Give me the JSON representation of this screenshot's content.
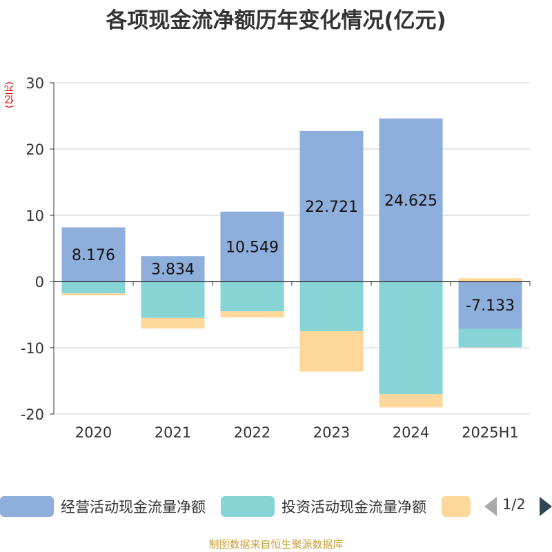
{
  "title": "各项现金流净额历年变化情况(亿元)",
  "unit_label": "(亿元)",
  "source": "制图数据来自恒生聚源数据库",
  "pager": "1/2",
  "chart_data": {
    "type": "bar",
    "stacked": true,
    "categories": [
      "2020",
      "2021",
      "2022",
      "2023",
      "2024",
      "2025H1"
    ],
    "ylim": [
      -20,
      30
    ],
    "yticks": [
      -20,
      -10,
      0,
      10,
      20,
      30
    ],
    "grid": true,
    "legend_position": "bottom",
    "series": [
      {
        "name": "经营活动现金流量净额",
        "color": "#8eaedb",
        "values": [
          8.176,
          3.834,
          10.549,
          22.721,
          24.625,
          -7.133
        ],
        "labels": [
          "8.176",
          "3.834",
          "10.549",
          "22.721",
          "24.625",
          "-7.133"
        ]
      },
      {
        "name": "投资活动现金流量净额",
        "color": "#86d4d6",
        "values": [
          -1.8,
          -5.5,
          -4.5,
          -7.5,
          -17.0,
          -2.8
        ]
      },
      {
        "name": "",
        "color": "#fdd89a",
        "values": [
          -0.3,
          -1.6,
          -0.9,
          -6.1,
          -2.0,
          0.5
        ]
      }
    ]
  }
}
